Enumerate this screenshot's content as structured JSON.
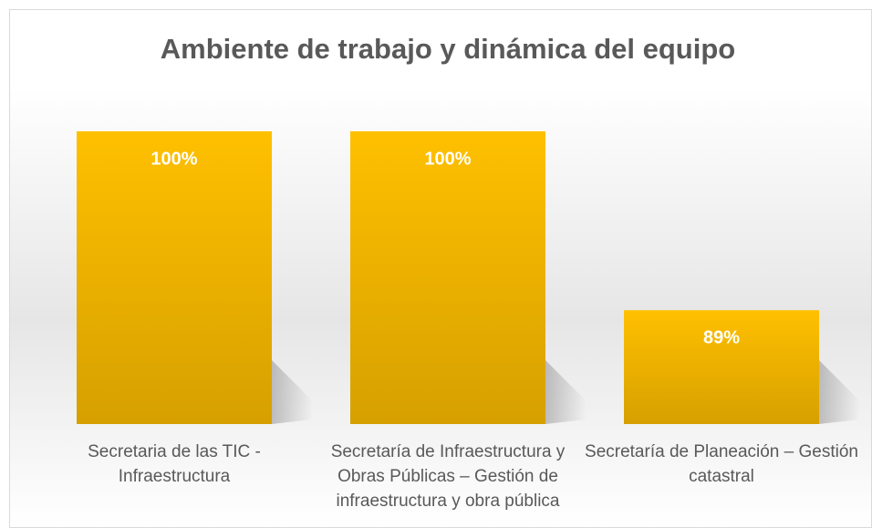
{
  "chart_data": {
    "type": "bar",
    "title": "Ambiente de trabajo y dinámica del equipo",
    "categories": [
      "Secretaria de las TIC - Infraestructura",
      "Secretaría de Infraestructura y Obras Públicas – Gestión de infraestructura y obra pública",
      "Secretaría de Planeación – Gestión catastral"
    ],
    "values": [
      100,
      100,
      89
    ],
    "value_labels": [
      "100%",
      "100%",
      "89%"
    ],
    "color": "#ffc000",
    "ylim": [
      82,
      100
    ]
  }
}
